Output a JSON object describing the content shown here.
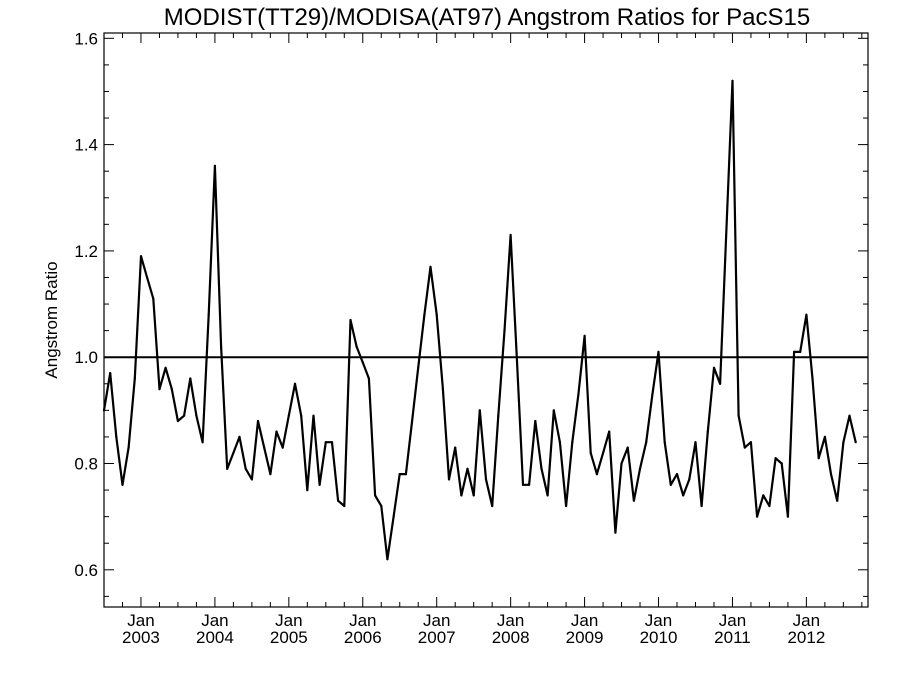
{
  "chart_data": {
    "type": "line",
    "title": "MODIST(TT29)/MODISA(AT97)  Angstrom Ratios for PacS15",
    "xlabel": "",
    "ylabel": "Angstrom Ratio",
    "ylim": [
      0.53,
      1.61
    ],
    "xlim": [
      "2002-07",
      "2012-11"
    ],
    "y_ticks": [
      "0.6",
      "0.8",
      "1.0",
      "1.2",
      "1.4",
      "1.6"
    ],
    "x_ticks": [
      {
        "month": "Jan",
        "year": "2003",
        "date": "2003-01"
      },
      {
        "month": "Jan",
        "year": "2004",
        "date": "2004-01"
      },
      {
        "month": "Jan",
        "year": "2005",
        "date": "2005-01"
      },
      {
        "month": "Jan",
        "year": "2006",
        "date": "2006-01"
      },
      {
        "month": "Jan",
        "year": "2007",
        "date": "2007-01"
      },
      {
        "month": "Jan",
        "year": "2008",
        "date": "2008-01"
      },
      {
        "month": "Jan",
        "year": "2009",
        "date": "2009-01"
      },
      {
        "month": "Jan",
        "year": "2010",
        "date": "2010-01"
      },
      {
        "month": "Jan",
        "year": "2011",
        "date": "2011-01"
      },
      {
        "month": "Jan",
        "year": "2012",
        "date": "2012-01"
      }
    ],
    "reference_line": 1.0,
    "grid": false,
    "series": [
      {
        "color": "#000000",
        "points": [
          [
            "2002-07",
            0.9
          ],
          [
            "2002-08",
            0.97
          ],
          [
            "2002-09",
            0.85
          ],
          [
            "2002-10",
            0.76
          ],
          [
            "2002-11",
            0.83
          ],
          [
            "2002-12",
            0.96
          ],
          [
            "2003-01",
            1.19
          ],
          [
            "2003-02",
            1.15
          ],
          [
            "2003-03",
            1.11
          ],
          [
            "2003-04",
            0.94
          ],
          [
            "2003-05",
            0.98
          ],
          [
            "2003-06",
            0.94
          ],
          [
            "2003-07",
            0.88
          ],
          [
            "2003-08",
            0.89
          ],
          [
            "2003-09",
            0.96
          ],
          [
            "2003-10",
            0.89
          ],
          [
            "2003-11",
            0.84
          ],
          [
            "2003-12",
            1.08
          ],
          [
            "2004-01",
            1.36
          ],
          [
            "2004-02",
            1.02
          ],
          [
            "2004-03",
            0.79
          ],
          [
            "2004-04",
            0.82
          ],
          [
            "2004-05",
            0.85
          ],
          [
            "2004-06",
            0.79
          ],
          [
            "2004-07",
            0.77
          ],
          [
            "2004-08",
            0.88
          ],
          [
            "2004-09",
            0.83
          ],
          [
            "2004-10",
            0.78
          ],
          [
            "2004-11",
            0.86
          ],
          [
            "2004-12",
            0.83
          ],
          [
            "2005-01",
            0.89
          ],
          [
            "2005-02",
            0.95
          ],
          [
            "2005-03",
            0.89
          ],
          [
            "2005-04",
            0.75
          ],
          [
            "2005-05",
            0.89
          ],
          [
            "2005-06",
            0.76
          ],
          [
            "2005-07",
            0.84
          ],
          [
            "2005-08",
            0.84
          ],
          [
            "2005-09",
            0.73
          ],
          [
            "2005-10",
            0.72
          ],
          [
            "2005-11",
            1.07
          ],
          [
            "2005-12",
            1.02
          ],
          [
            "2006-01",
            0.99
          ],
          [
            "2006-02",
            0.96
          ],
          [
            "2006-03",
            0.74
          ],
          [
            "2006-04",
            0.72
          ],
          [
            "2006-05",
            0.62
          ],
          [
            "2006-06",
            0.7
          ],
          [
            "2006-07",
            0.78
          ],
          [
            "2006-08",
            0.78
          ],
          [
            "2006-09",
            0.88
          ],
          [
            "2006-10",
            0.98
          ],
          [
            "2006-11",
            1.08
          ],
          [
            "2006-12",
            1.17
          ],
          [
            "2007-01",
            1.08
          ],
          [
            "2007-02",
            0.94
          ],
          [
            "2007-03",
            0.77
          ],
          [
            "2007-04",
            0.83
          ],
          [
            "2007-05",
            0.74
          ],
          [
            "2007-06",
            0.79
          ],
          [
            "2007-07",
            0.74
          ],
          [
            "2007-08",
            0.9
          ],
          [
            "2007-09",
            0.77
          ],
          [
            "2007-10",
            0.72
          ],
          [
            "2007-11",
            0.89
          ],
          [
            "2007-12",
            1.05
          ],
          [
            "2008-01",
            1.23
          ],
          [
            "2008-02",
            1.0
          ],
          [
            "2008-03",
            0.76
          ],
          [
            "2008-04",
            0.76
          ],
          [
            "2008-05",
            0.88
          ],
          [
            "2008-06",
            0.79
          ],
          [
            "2008-07",
            0.74
          ],
          [
            "2008-08",
            0.9
          ],
          [
            "2008-09",
            0.84
          ],
          [
            "2008-10",
            0.72
          ],
          [
            "2008-11",
            0.84
          ],
          [
            "2008-12",
            0.93
          ],
          [
            "2009-01",
            1.04
          ],
          [
            "2009-02",
            0.82
          ],
          [
            "2009-03",
            0.78
          ],
          [
            "2009-04",
            0.82
          ],
          [
            "2009-05",
            0.86
          ],
          [
            "2009-06",
            0.67
          ],
          [
            "2009-07",
            0.8
          ],
          [
            "2009-08",
            0.83
          ],
          [
            "2009-09",
            0.73
          ],
          [
            "2009-10",
            0.79
          ],
          [
            "2009-11",
            0.84
          ],
          [
            "2009-12",
            0.93
          ],
          [
            "2010-01",
            1.01
          ],
          [
            "2010-02",
            0.84
          ],
          [
            "2010-03",
            0.76
          ],
          [
            "2010-04",
            0.78
          ],
          [
            "2010-05",
            0.74
          ],
          [
            "2010-06",
            0.77
          ],
          [
            "2010-07",
            0.84
          ],
          [
            "2010-08",
            0.72
          ],
          [
            "2010-09",
            0.86
          ],
          [
            "2010-10",
            0.98
          ],
          [
            "2010-11",
            0.95
          ],
          [
            "2011-01",
            1.52
          ],
          [
            "2011-02",
            0.89
          ],
          [
            "2011-03",
            0.83
          ],
          [
            "2011-04",
            0.84
          ],
          [
            "2011-05",
            0.7
          ],
          [
            "2011-06",
            0.74
          ],
          [
            "2011-07",
            0.72
          ],
          [
            "2011-08",
            0.81
          ],
          [
            "2011-09",
            0.8
          ],
          [
            "2011-10",
            0.7
          ],
          [
            "2011-11",
            1.01
          ],
          [
            "2011-12",
            1.01
          ],
          [
            "2012-01",
            1.08
          ],
          [
            "2012-02",
            0.96
          ],
          [
            "2012-03",
            0.81
          ],
          [
            "2012-04",
            0.85
          ],
          [
            "2012-05",
            0.78
          ],
          [
            "2012-06",
            0.73
          ],
          [
            "2012-07",
            0.84
          ],
          [
            "2012-08",
            0.89
          ],
          [
            "2012-09",
            0.84
          ]
        ]
      }
    ]
  }
}
